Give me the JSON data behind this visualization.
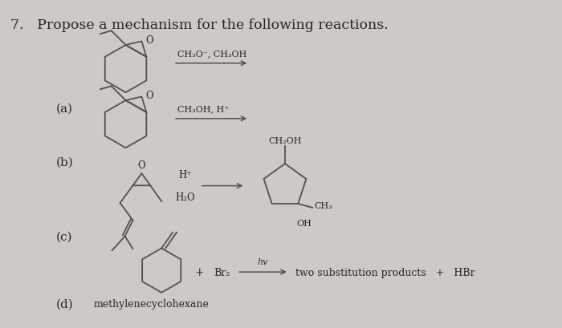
{
  "background_color": "#cdc9c4",
  "title_text": "7.   Propose a mechanism for the following reactions.",
  "title_fontsize": 12.5,
  "label_fontsize": 11,
  "reagent_a_top": "CH₃O⁻, CH₃OH",
  "reagent_a_bot": "CH₃OH, H⁺",
  "product_d": "two substitution products   +   HBr",
  "label_d_text": "methylenecyclohexane",
  "line_color": "#555050",
  "text_color": "#2a2520",
  "arrow_color": "#444040"
}
